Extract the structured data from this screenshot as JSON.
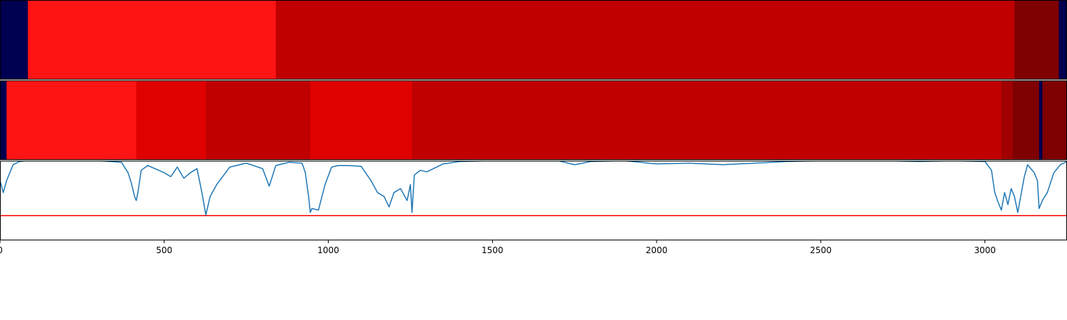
{
  "chart_data": [
    {
      "type": "heatmap",
      "xlim": [
        0,
        3250
      ],
      "colors": {
        "navy": "#000050",
        "red_bright": "#ff1414",
        "red_mid": "#e00000",
        "red_dark": "#c00000",
        "red_deeper": "#a00000",
        "maroon": "#7f0000"
      },
      "segments": [
        {
          "start": 0,
          "end": 85,
          "color": "#000050"
        },
        {
          "start": 85,
          "end": 840,
          "color": "#ff1414"
        },
        {
          "start": 840,
          "end": 3090,
          "color": "#c00000"
        },
        {
          "start": 3090,
          "end": 3225,
          "color": "#7f0000"
        },
        {
          "start": 3225,
          "end": 3250,
          "color": "#000050"
        }
      ]
    },
    {
      "type": "heatmap",
      "xlim": [
        0,
        3250
      ],
      "segments": [
        {
          "start": 0,
          "end": 20,
          "color": "#000050"
        },
        {
          "start": 20,
          "end": 415,
          "color": "#ff1414"
        },
        {
          "start": 415,
          "end": 627,
          "color": "#e00000"
        },
        {
          "start": 627,
          "end": 945,
          "color": "#c00000"
        },
        {
          "start": 945,
          "end": 1255,
          "color": "#e00000"
        },
        {
          "start": 1255,
          "end": 3050,
          "color": "#c00000"
        },
        {
          "start": 3050,
          "end": 3085,
          "color": "#a00000"
        },
        {
          "start": 3085,
          "end": 3165,
          "color": "#7f0000"
        },
        {
          "start": 3165,
          "end": 3175,
          "color": "#000050"
        },
        {
          "start": 3175,
          "end": 3250,
          "color": "#7f0000"
        }
      ]
    },
    {
      "type": "line",
      "xlim": [
        0,
        3250
      ],
      "ylim": [
        0,
        1
      ],
      "line_color": "#1f77b4",
      "threshold": {
        "y": 0.31,
        "color": "#ff0000"
      },
      "x": [
        0,
        10,
        20,
        40,
        60,
        80,
        100,
        150,
        200,
        300,
        370,
        390,
        400,
        410,
        415,
        420,
        430,
        450,
        500,
        520,
        540,
        560,
        580,
        600,
        615,
        627,
        640,
        660,
        700,
        750,
        800,
        820,
        840,
        880,
        920,
        930,
        940,
        945,
        950,
        970,
        990,
        1010,
        1030,
        1060,
        1100,
        1130,
        1150,
        1170,
        1185,
        1200,
        1220,
        1240,
        1250,
        1255,
        1262,
        1280,
        1300,
        1350,
        1400,
        1500,
        1600,
        1700,
        1750,
        1800,
        1900,
        2000,
        2100,
        2200,
        2300,
        2400,
        2500,
        2600,
        2700,
        2800,
        2900,
        3000,
        3020,
        3030,
        3040,
        3050,
        3060,
        3070,
        3080,
        3090,
        3100,
        3120,
        3130,
        3150,
        3160,
        3165,
        3175,
        3190,
        3210,
        3230,
        3250
      ],
      "values": [
        0.75,
        0.6,
        0.75,
        0.95,
        0.99,
        1.0,
        1.0,
        1.0,
        1.0,
        1.0,
        0.98,
        0.85,
        0.72,
        0.55,
        0.5,
        0.6,
        0.88,
        0.94,
        0.85,
        0.8,
        0.92,
        0.78,
        0.85,
        0.9,
        0.6,
        0.32,
        0.55,
        0.7,
        0.92,
        0.97,
        0.9,
        0.68,
        0.94,
        0.98,
        0.97,
        0.85,
        0.55,
        0.35,
        0.4,
        0.38,
        0.7,
        0.92,
        0.94,
        0.94,
        0.93,
        0.75,
        0.6,
        0.55,
        0.42,
        0.6,
        0.65,
        0.5,
        0.7,
        0.35,
        0.82,
        0.88,
        0.86,
        0.96,
        0.99,
        1.0,
        1.0,
        1.0,
        0.95,
        0.99,
        1.0,
        0.96,
        0.97,
        0.95,
        0.97,
        0.99,
        1.0,
        1.0,
        1.0,
        0.99,
        1.0,
        0.99,
        0.88,
        0.6,
        0.48,
        0.38,
        0.6,
        0.45,
        0.65,
        0.55,
        0.35,
        0.8,
        0.95,
        0.85,
        0.75,
        0.4,
        0.5,
        0.6,
        0.85,
        0.95,
        0.99
      ]
    }
  ],
  "x_ticks": [
    0,
    500,
    1000,
    1500,
    2000,
    2500,
    3000
  ],
  "x_tick_labels": [
    "0",
    "500",
    "1000",
    "1500",
    "2000",
    "2500",
    "3000"
  ]
}
